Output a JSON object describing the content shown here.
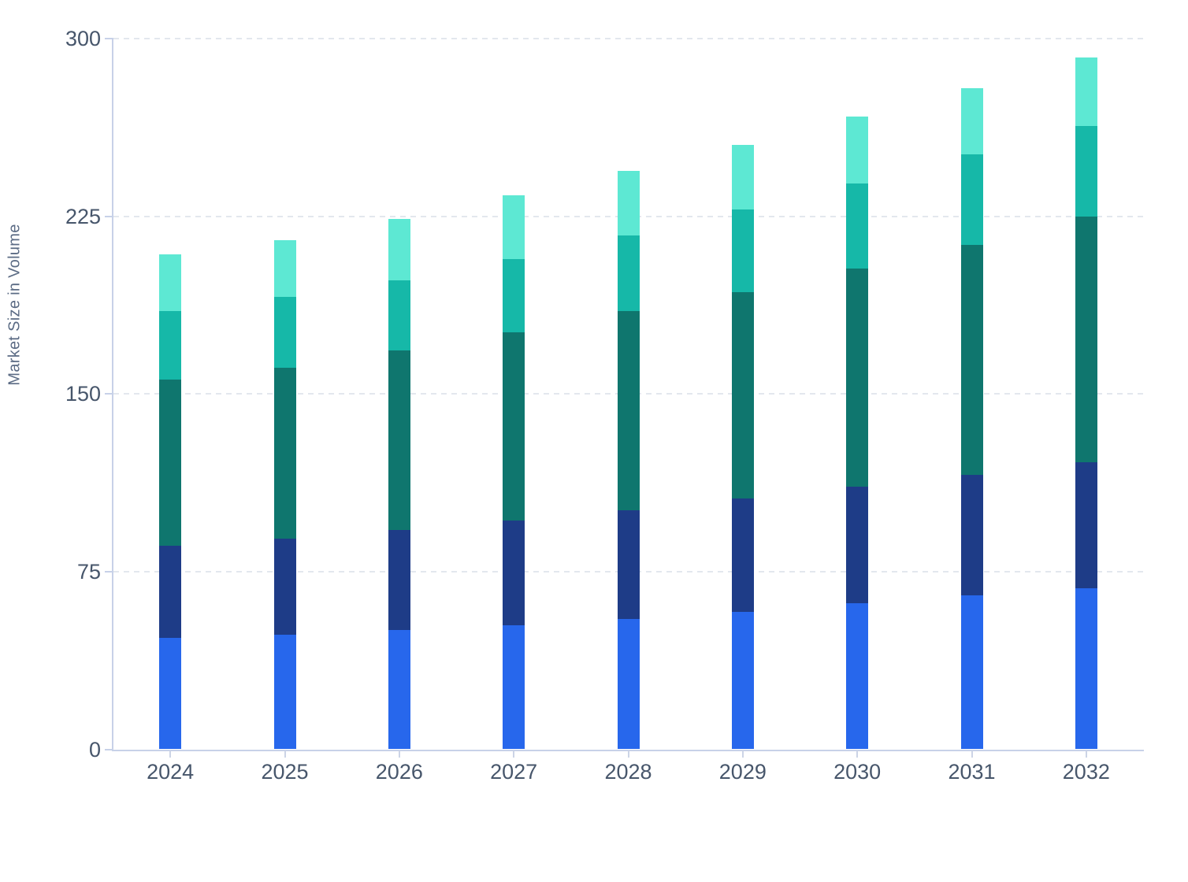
{
  "chart_data": {
    "type": "bar",
    "stacked": true,
    "title": "",
    "xlabel": "",
    "ylabel": "Market Size in Volume",
    "ylim": [
      0,
      300
    ],
    "y_ticks": [
      0,
      75,
      150,
      225,
      300
    ],
    "y_tick_labels": [
      "0",
      "75",
      "150",
      "225",
      "300"
    ],
    "grid": "horizontal-dashed",
    "legend_position": "none",
    "categories": [
      "2024",
      "2025",
      "2026",
      "2027",
      "2028",
      "2029",
      "2030",
      "2031",
      "2032"
    ],
    "series": [
      {
        "name": "series-1-bottom-blue",
        "color": "#2767ec",
        "values": [
          47,
          48.5,
          50.5,
          52.5,
          55,
          58,
          61.5,
          65,
          68
        ]
      },
      {
        "name": "series-2-navy",
        "color": "#1e3c87",
        "values": [
          39,
          40.5,
          42,
          44,
          46,
          48,
          49.5,
          51,
          53
        ]
      },
      {
        "name": "series-3-dark-teal",
        "color": "#0f766e",
        "values": [
          70,
          72,
          76,
          79.5,
          84,
          87,
          92,
          97,
          104
        ]
      },
      {
        "name": "series-4-teal",
        "color": "#16b8a8",
        "values": [
          29,
          30,
          29.5,
          31,
          32,
          35,
          36,
          38,
          38
        ]
      },
      {
        "name": "series-5-top-mint",
        "color": "#5de8d3",
        "values": [
          24,
          24,
          26,
          27,
          27,
          27,
          28,
          28,
          29
        ]
      }
    ],
    "stack_totals": [
      209,
      215,
      224,
      234,
      244,
      255,
      267,
      279,
      292
    ]
  },
  "styles": {
    "axis_line_color": "#c7d1e8",
    "gridline_color": "#e3e7ee",
    "tick_label_color": "#47566b",
    "axis_title_color": "#5b6b84",
    "background_color": "#ffffff"
  }
}
